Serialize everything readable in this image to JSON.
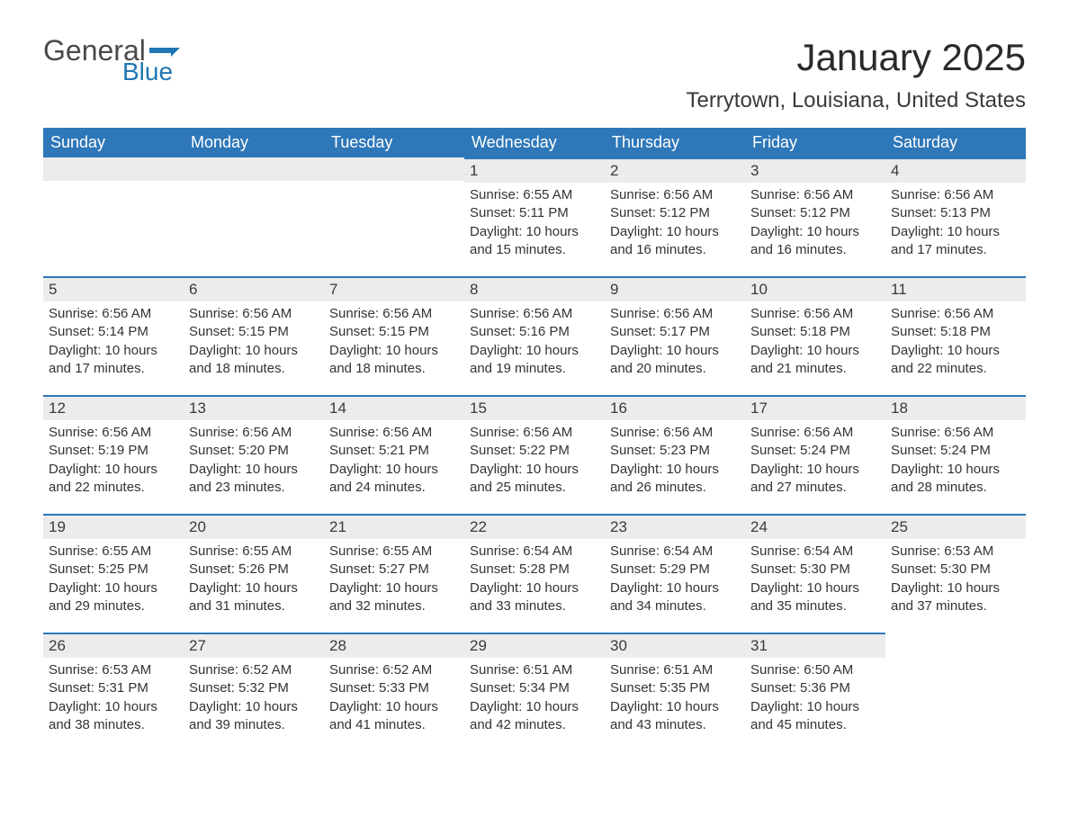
{
  "logo": {
    "general": "General",
    "blue": "Blue",
    "accent_color": "#1f77b4"
  },
  "title": "January 2025",
  "location": "Terrytown, Louisiana, United States",
  "weekdays": [
    "Sunday",
    "Monday",
    "Tuesday",
    "Wednesday",
    "Thursday",
    "Friday",
    "Saturday"
  ],
  "header_bg": "#2e77b8",
  "daynum_bg": "#ececec",
  "text_color": "#333333",
  "weeks": [
    [
      null,
      null,
      null,
      {
        "n": "1",
        "sunrise": "Sunrise: 6:55 AM",
        "sunset": "Sunset: 5:11 PM",
        "daylight": "Daylight: 10 hours and 15 minutes."
      },
      {
        "n": "2",
        "sunrise": "Sunrise: 6:56 AM",
        "sunset": "Sunset: 5:12 PM",
        "daylight": "Daylight: 10 hours and 16 minutes."
      },
      {
        "n": "3",
        "sunrise": "Sunrise: 6:56 AM",
        "sunset": "Sunset: 5:12 PM",
        "daylight": "Daylight: 10 hours and 16 minutes."
      },
      {
        "n": "4",
        "sunrise": "Sunrise: 6:56 AM",
        "sunset": "Sunset: 5:13 PM",
        "daylight": "Daylight: 10 hours and 17 minutes."
      }
    ],
    [
      {
        "n": "5",
        "sunrise": "Sunrise: 6:56 AM",
        "sunset": "Sunset: 5:14 PM",
        "daylight": "Daylight: 10 hours and 17 minutes."
      },
      {
        "n": "6",
        "sunrise": "Sunrise: 6:56 AM",
        "sunset": "Sunset: 5:15 PM",
        "daylight": "Daylight: 10 hours and 18 minutes."
      },
      {
        "n": "7",
        "sunrise": "Sunrise: 6:56 AM",
        "sunset": "Sunset: 5:15 PM",
        "daylight": "Daylight: 10 hours and 18 minutes."
      },
      {
        "n": "8",
        "sunrise": "Sunrise: 6:56 AM",
        "sunset": "Sunset: 5:16 PM",
        "daylight": "Daylight: 10 hours and 19 minutes."
      },
      {
        "n": "9",
        "sunrise": "Sunrise: 6:56 AM",
        "sunset": "Sunset: 5:17 PM",
        "daylight": "Daylight: 10 hours and 20 minutes."
      },
      {
        "n": "10",
        "sunrise": "Sunrise: 6:56 AM",
        "sunset": "Sunset: 5:18 PM",
        "daylight": "Daylight: 10 hours and 21 minutes."
      },
      {
        "n": "11",
        "sunrise": "Sunrise: 6:56 AM",
        "sunset": "Sunset: 5:18 PM",
        "daylight": "Daylight: 10 hours and 22 minutes."
      }
    ],
    [
      {
        "n": "12",
        "sunrise": "Sunrise: 6:56 AM",
        "sunset": "Sunset: 5:19 PM",
        "daylight": "Daylight: 10 hours and 22 minutes."
      },
      {
        "n": "13",
        "sunrise": "Sunrise: 6:56 AM",
        "sunset": "Sunset: 5:20 PM",
        "daylight": "Daylight: 10 hours and 23 minutes."
      },
      {
        "n": "14",
        "sunrise": "Sunrise: 6:56 AM",
        "sunset": "Sunset: 5:21 PM",
        "daylight": "Daylight: 10 hours and 24 minutes."
      },
      {
        "n": "15",
        "sunrise": "Sunrise: 6:56 AM",
        "sunset": "Sunset: 5:22 PM",
        "daylight": "Daylight: 10 hours and 25 minutes."
      },
      {
        "n": "16",
        "sunrise": "Sunrise: 6:56 AM",
        "sunset": "Sunset: 5:23 PM",
        "daylight": "Daylight: 10 hours and 26 minutes."
      },
      {
        "n": "17",
        "sunrise": "Sunrise: 6:56 AM",
        "sunset": "Sunset: 5:24 PM",
        "daylight": "Daylight: 10 hours and 27 minutes."
      },
      {
        "n": "18",
        "sunrise": "Sunrise: 6:56 AM",
        "sunset": "Sunset: 5:24 PM",
        "daylight": "Daylight: 10 hours and 28 minutes."
      }
    ],
    [
      {
        "n": "19",
        "sunrise": "Sunrise: 6:55 AM",
        "sunset": "Sunset: 5:25 PM",
        "daylight": "Daylight: 10 hours and 29 minutes."
      },
      {
        "n": "20",
        "sunrise": "Sunrise: 6:55 AM",
        "sunset": "Sunset: 5:26 PM",
        "daylight": "Daylight: 10 hours and 31 minutes."
      },
      {
        "n": "21",
        "sunrise": "Sunrise: 6:55 AM",
        "sunset": "Sunset: 5:27 PM",
        "daylight": "Daylight: 10 hours and 32 minutes."
      },
      {
        "n": "22",
        "sunrise": "Sunrise: 6:54 AM",
        "sunset": "Sunset: 5:28 PM",
        "daylight": "Daylight: 10 hours and 33 minutes."
      },
      {
        "n": "23",
        "sunrise": "Sunrise: 6:54 AM",
        "sunset": "Sunset: 5:29 PM",
        "daylight": "Daylight: 10 hours and 34 minutes."
      },
      {
        "n": "24",
        "sunrise": "Sunrise: 6:54 AM",
        "sunset": "Sunset: 5:30 PM",
        "daylight": "Daylight: 10 hours and 35 minutes."
      },
      {
        "n": "25",
        "sunrise": "Sunrise: 6:53 AM",
        "sunset": "Sunset: 5:30 PM",
        "daylight": "Daylight: 10 hours and 37 minutes."
      }
    ],
    [
      {
        "n": "26",
        "sunrise": "Sunrise: 6:53 AM",
        "sunset": "Sunset: 5:31 PM",
        "daylight": "Daylight: 10 hours and 38 minutes."
      },
      {
        "n": "27",
        "sunrise": "Sunrise: 6:52 AM",
        "sunset": "Sunset: 5:32 PM",
        "daylight": "Daylight: 10 hours and 39 minutes."
      },
      {
        "n": "28",
        "sunrise": "Sunrise: 6:52 AM",
        "sunset": "Sunset: 5:33 PM",
        "daylight": "Daylight: 10 hours and 41 minutes."
      },
      {
        "n": "29",
        "sunrise": "Sunrise: 6:51 AM",
        "sunset": "Sunset: 5:34 PM",
        "daylight": "Daylight: 10 hours and 42 minutes."
      },
      {
        "n": "30",
        "sunrise": "Sunrise: 6:51 AM",
        "sunset": "Sunset: 5:35 PM",
        "daylight": "Daylight: 10 hours and 43 minutes."
      },
      {
        "n": "31",
        "sunrise": "Sunrise: 6:50 AM",
        "sunset": "Sunset: 5:36 PM",
        "daylight": "Daylight: 10 hours and 45 minutes."
      },
      null
    ]
  ]
}
